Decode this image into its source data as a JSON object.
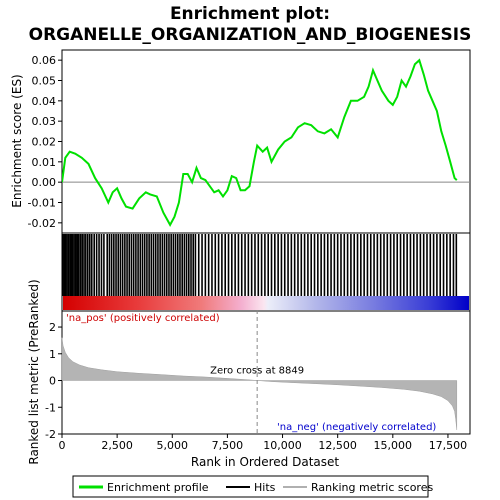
{
  "chart_data": {
    "type": "line",
    "title_line1": "Enrichment plot:",
    "title_line2": "ORGANELLE_ORGANIZATION_AND_BIOGENESIS",
    "xlabel": "Rank in Ordered Dataset",
    "ylabel_top": "Enrichment score (ES)",
    "ylabel_bottom": "Ranked list metric (PreRanked)",
    "xlim": [
      0,
      18500
    ],
    "x_ticks": [
      0,
      2500,
      5000,
      7500,
      10000,
      12500,
      15000,
      17500
    ],
    "x_tick_labels": [
      "0",
      "2,500",
      "5,000",
      "7,500",
      "10,000",
      "12,500",
      "15,000",
      "17,500"
    ],
    "es_ylim": [
      -0.025,
      0.065
    ],
    "es_ticks": [
      -0.02,
      -0.01,
      0.0,
      0.01,
      0.02,
      0.03,
      0.04,
      0.05,
      0.06
    ],
    "es_tick_labels": [
      "-0.02",
      "-0.01",
      "0.00",
      "0.01",
      "0.02",
      "0.03",
      "0.04",
      "0.05",
      "0.06"
    ],
    "metric_ylim": [
      -2,
      2.6
    ],
    "metric_ticks": [
      -2,
      -1,
      0,
      1,
      2
    ],
    "metric_tick_labels": [
      "-2",
      "-1",
      "0",
      "1",
      "2"
    ],
    "dataset_size": 17900,
    "zero_cross": 8849,
    "zero_cross_label": "Zero cross at 8849",
    "na_pos_label": "'na_pos' (positively correlated)",
    "na_neg_label": "'na_neg' (negatively correlated)",
    "enrichment_profile": {
      "x": [
        0,
        150,
        350,
        600,
        900,
        1200,
        1500,
        1800,
        2100,
        2300,
        2500,
        2700,
        2900,
        3200,
        3500,
        3800,
        4000,
        4300,
        4600,
        4900,
        5100,
        5300,
        5500,
        5700,
        5900,
        6100,
        6300,
        6500,
        6700,
        6900,
        7100,
        7300,
        7500,
        7700,
        7900,
        8100,
        8300,
        8500,
        8700,
        8850,
        9100,
        9300,
        9500,
        9800,
        10100,
        10400,
        10700,
        11000,
        11300,
        11600,
        11900,
        12200,
        12500,
        12800,
        13100,
        13400,
        13700,
        13900,
        14100,
        14300,
        14500,
        14800,
        15000,
        15200,
        15400,
        15600,
        15800,
        16000,
        16200,
        16400,
        16600,
        16800,
        17000,
        17200,
        17400,
        17600,
        17800,
        17900
      ],
      "y": [
        0.0,
        0.012,
        0.015,
        0.014,
        0.012,
        0.009,
        0.002,
        -0.003,
        -0.01,
        -0.005,
        -0.003,
        -0.008,
        -0.012,
        -0.013,
        -0.008,
        -0.005,
        -0.006,
        -0.007,
        -0.015,
        -0.021,
        -0.017,
        -0.01,
        0.004,
        0.004,
        0.0,
        0.007,
        0.002,
        0.001,
        -0.002,
        -0.005,
        -0.004,
        -0.007,
        -0.004,
        0.003,
        0.002,
        -0.004,
        -0.004,
        -0.002,
        0.01,
        0.018,
        0.015,
        0.017,
        0.01,
        0.016,
        0.02,
        0.022,
        0.027,
        0.029,
        0.028,
        0.025,
        0.024,
        0.026,
        0.022,
        0.032,
        0.04,
        0.04,
        0.042,
        0.047,
        0.055,
        0.05,
        0.045,
        0.04,
        0.038,
        0.042,
        0.05,
        0.047,
        0.052,
        0.058,
        0.06,
        0.053,
        0.045,
        0.04,
        0.035,
        0.025,
        0.018,
        0.01,
        0.002,
        0.001
      ]
    },
    "hits": [
      30,
      90,
      150,
      220,
      290,
      360,
      420,
      480,
      550,
      620,
      690,
      760,
      840,
      920,
      1000,
      1080,
      1170,
      1260,
      1350,
      1460,
      1570,
      1680,
      1790,
      1900,
      2050,
      2150,
      2250,
      2350,
      2450,
      2550,
      2650,
      2750,
      2850,
      2950,
      3050,
      3150,
      3250,
      3350,
      3450,
      3550,
      3650,
      3750,
      3850,
      3950,
      4050,
      4150,
      4250,
      4350,
      4450,
      4550,
      4650,
      4750,
      4850,
      4950,
      5050,
      5150,
      5250,
      5350,
      5450,
      5550,
      5650,
      5750,
      5850,
      5950,
      6050,
      6200,
      6350,
      6500,
      6650,
      6800,
      6950,
      7100,
      7250,
      7400,
      7550,
      7700,
      7850,
      8000,
      8150,
      8300,
      8450,
      8600,
      8750,
      8900,
      9050,
      9200,
      9350,
      9500,
      9650,
      9800,
      9950,
      10100,
      10250,
      10400,
      10550,
      10700,
      10850,
      11000,
      11150,
      11300,
      11450,
      11600,
      11750,
      11900,
      12050,
      12200,
      12350,
      12500,
      12650,
      12800,
      12950,
      13100,
      13250,
      13400,
      13550,
      13700,
      13850,
      14000,
      14150,
      14300,
      14450,
      14600,
      14750,
      14900,
      15050,
      15200,
      15350,
      15500,
      15650,
      15800,
      15950,
      16100,
      16250,
      16400,
      16550,
      16700,
      16850,
      17000,
      17150,
      17300,
      17450,
      17600,
      17750,
      17880
    ],
    "metric_curve": {
      "x": [
        0,
        50,
        150,
        300,
        500,
        800,
        1200,
        1800,
        2500,
        3500,
        4500,
        5500,
        6500,
        7500,
        8400,
        8849,
        9500,
        10500,
        11500,
        12500,
        13500,
        14500,
        15500,
        16200,
        16800,
        17200,
        17500,
        17700,
        17800,
        17850,
        17900
      ],
      "y": [
        1.6,
        1.3,
        1.05,
        0.85,
        0.7,
        0.58,
        0.48,
        0.4,
        0.33,
        0.27,
        0.22,
        0.17,
        0.13,
        0.08,
        0.03,
        0.0,
        -0.04,
        -0.08,
        -0.12,
        -0.16,
        -0.21,
        -0.26,
        -0.33,
        -0.4,
        -0.5,
        -0.6,
        -0.75,
        -0.95,
        -1.15,
        -1.45,
        -1.85
      ]
    },
    "legend": [
      "Enrichment profile",
      "Hits",
      "Ranking metric scores"
    ],
    "colors": {
      "profile": "#00e000",
      "hits": "#000000",
      "metric": "#b0b0b0",
      "pos_band": "#e00000",
      "neg_band": "#0000d0",
      "na_pos_text": "#cc0000",
      "na_neg_text": "#0000cc"
    }
  }
}
